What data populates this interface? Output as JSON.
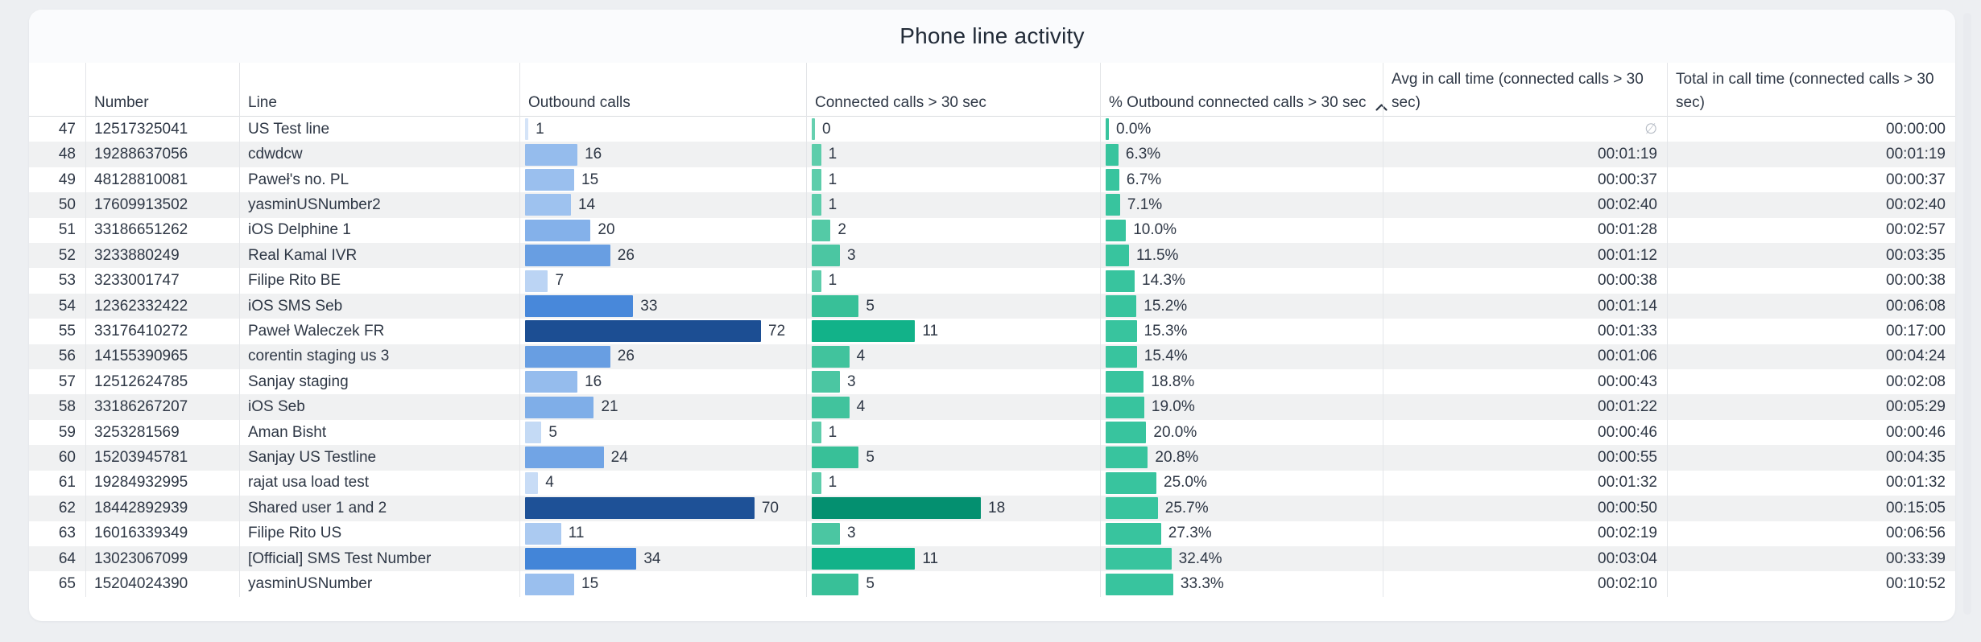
{
  "title": "Phone line activity",
  "header": {
    "index": "",
    "number": "Number",
    "line": "Line",
    "outbound": "Outbound calls",
    "connected": "Connected calls > 30 sec",
    "pct": "% Outbound connected calls > 30 sec",
    "avg": "Avg in call time (connected calls > 30 sec)",
    "total": "Total in call time (connected calls > 30 sec)",
    "sort_icon": "chevron-up-icon"
  },
  "null_symbol": "∅",
  "colors": {
    "pct_bar": "#38c49e",
    "blue_scale": [
      "#d9e7f9",
      "#8db7ec",
      "#3a7fd6",
      "#1c4e93"
    ],
    "green_scale": [
      "#66d0b0",
      "#38c098",
      "#12b289",
      "#049070"
    ],
    "stripe": "#f0f1f2",
    "text": "#2e3745"
  },
  "chart_data": {
    "type": "table",
    "title": "Phone line activity",
    "sorted_by": {
      "column": "% Outbound connected calls > 30 sec",
      "direction": "ascending"
    },
    "columns": [
      "",
      "Number",
      "Line",
      "Outbound calls",
      "Connected calls > 30 sec",
      "% Outbound connected calls > 30 sec",
      "Avg in call time (connected calls > 30 sec)",
      "Total in call time (connected calls > 30 sec)"
    ],
    "bar_columns": {
      "outbound_calls": {
        "style": "bar",
        "color_scale": "blue",
        "max": 72
      },
      "connected_calls": {
        "style": "bar",
        "color_scale": "green",
        "max": 18
      },
      "pct_connected": {
        "style": "bar",
        "color": "#38c49e",
        "axis_max_percent": 100
      }
    },
    "rows": [
      {
        "index": 47,
        "number": "12517325041",
        "line": "US Test line",
        "outbound_calls": 1,
        "connected_calls": 0,
        "pct_connected": "0.0%",
        "avg_in_call_time": null,
        "total_in_call_time": "00:00:00"
      },
      {
        "index": 48,
        "number": "19288637056",
        "line": "cdwdcw",
        "outbound_calls": 16,
        "connected_calls": 1,
        "pct_connected": "6.3%",
        "avg_in_call_time": "00:01:19",
        "total_in_call_time": "00:01:19"
      },
      {
        "index": 49,
        "number": "48128810081",
        "line": "Paweł's no. PL",
        "outbound_calls": 15,
        "connected_calls": 1,
        "pct_connected": "6.7%",
        "avg_in_call_time": "00:00:37",
        "total_in_call_time": "00:00:37"
      },
      {
        "index": 50,
        "number": "17609913502",
        "line": "yasminUSNumber2",
        "outbound_calls": 14,
        "connected_calls": 1,
        "pct_connected": "7.1%",
        "avg_in_call_time": "00:02:40",
        "total_in_call_time": "00:02:40"
      },
      {
        "index": 51,
        "number": "33186651262",
        "line": "iOS Delphine 1",
        "outbound_calls": 20,
        "connected_calls": 2,
        "pct_connected": "10.0%",
        "avg_in_call_time": "00:01:28",
        "total_in_call_time": "00:02:57"
      },
      {
        "index": 52,
        "number": "3233880249",
        "line": "Real Kamal IVR",
        "outbound_calls": 26,
        "connected_calls": 3,
        "pct_connected": "11.5%",
        "avg_in_call_time": "00:01:12",
        "total_in_call_time": "00:03:35"
      },
      {
        "index": 53,
        "number": "3233001747",
        "line": "Filipe Rito BE",
        "outbound_calls": 7,
        "connected_calls": 1,
        "pct_connected": "14.3%",
        "avg_in_call_time": "00:00:38",
        "total_in_call_time": "00:00:38"
      },
      {
        "index": 54,
        "number": "12362332422",
        "line": "iOS SMS Seb",
        "outbound_calls": 33,
        "connected_calls": 5,
        "pct_connected": "15.2%",
        "avg_in_call_time": "00:01:14",
        "total_in_call_time": "00:06:08"
      },
      {
        "index": 55,
        "number": "33176410272",
        "line": "Paweł Waleczek FR",
        "outbound_calls": 72,
        "connected_calls": 11,
        "pct_connected": "15.3%",
        "avg_in_call_time": "00:01:33",
        "total_in_call_time": "00:17:00"
      },
      {
        "index": 56,
        "number": "14155390965",
        "line": "corentin staging us 3",
        "outbound_calls": 26,
        "connected_calls": 4,
        "pct_connected": "15.4%",
        "avg_in_call_time": "00:01:06",
        "total_in_call_time": "00:04:24"
      },
      {
        "index": 57,
        "number": "12512624785",
        "line": "Sanjay staging",
        "outbound_calls": 16,
        "connected_calls": 3,
        "pct_connected": "18.8%",
        "avg_in_call_time": "00:00:43",
        "total_in_call_time": "00:02:08"
      },
      {
        "index": 58,
        "number": "33186267207",
        "line": "iOS Seb",
        "outbound_calls": 21,
        "connected_calls": 4,
        "pct_connected": "19.0%",
        "avg_in_call_time": "00:01:22",
        "total_in_call_time": "00:05:29"
      },
      {
        "index": 59,
        "number": "3253281569",
        "line": "Aman Bisht",
        "outbound_calls": 5,
        "connected_calls": 1,
        "pct_connected": "20.0%",
        "avg_in_call_time": "00:00:46",
        "total_in_call_time": "00:00:46"
      },
      {
        "index": 60,
        "number": "15203945781",
        "line": "Sanjay US Testline",
        "outbound_calls": 24,
        "connected_calls": 5,
        "pct_connected": "20.8%",
        "avg_in_call_time": "00:00:55",
        "total_in_call_time": "00:04:35"
      },
      {
        "index": 61,
        "number": "19284932995",
        "line": "rajat usa load test",
        "outbound_calls": 4,
        "connected_calls": 1,
        "pct_connected": "25.0%",
        "avg_in_call_time": "00:01:32",
        "total_in_call_time": "00:01:32"
      },
      {
        "index": 62,
        "number": "18442892939",
        "line": "Shared user 1 and 2",
        "outbound_calls": 70,
        "connected_calls": 18,
        "pct_connected": "25.7%",
        "avg_in_call_time": "00:00:50",
        "total_in_call_time": "00:15:05"
      },
      {
        "index": 63,
        "number": "16016339349",
        "line": "Filipe Rito US",
        "outbound_calls": 11,
        "connected_calls": 3,
        "pct_connected": "27.3%",
        "avg_in_call_time": "00:02:19",
        "total_in_call_time": "00:06:56"
      },
      {
        "index": 64,
        "number": "13023067099",
        "line": "[Official] SMS Test Number",
        "outbound_calls": 34,
        "connected_calls": 11,
        "pct_connected": "32.4%",
        "avg_in_call_time": "00:03:04",
        "total_in_call_time": "00:33:39"
      },
      {
        "index": 65,
        "number": "15204024390",
        "line": "yasminUSNumber",
        "outbound_calls": 15,
        "connected_calls": 5,
        "pct_connected": "33.3%",
        "avg_in_call_time": "00:02:10",
        "total_in_call_time": "00:10:52"
      }
    ]
  }
}
